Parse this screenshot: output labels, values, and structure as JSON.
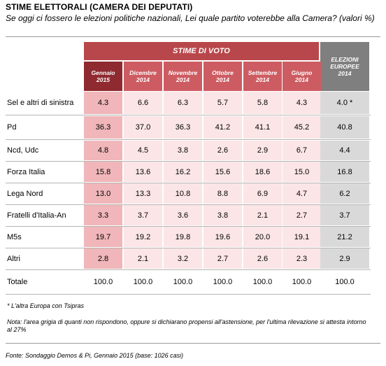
{
  "title": "STIME ELETTORALI (CAMERA DEI DEPUTATI)",
  "subtitle": "Se oggi ci fossero le elezioni politiche nazionali, Lei quale partito voterebbe alla Camera? (valori %)",
  "table": {
    "group_header": "STIME DI VOTO",
    "euro_header": [
      "ELEZIONI",
      "EUROPEE",
      "2014"
    ],
    "months": [
      {
        "line1": "Gennaio",
        "line2": "2015"
      },
      {
        "line1": "Dicembre",
        "line2": "2014"
      },
      {
        "line1": "Novembre",
        "line2": "2014"
      },
      {
        "line1": "Ottobre",
        "line2": "2014"
      },
      {
        "line1": "Settembre",
        "line2": "2014"
      },
      {
        "line1": "Giugno",
        "line2": "2014"
      }
    ],
    "rows": [
      {
        "label": "Sel e altri di sinistra",
        "values": [
          "4.3",
          "6.6",
          "6.3",
          "5.7",
          "5.8",
          "4.3"
        ],
        "euro": "4.0 *"
      },
      {
        "label": "Pd",
        "values": [
          "36.3",
          "37.0",
          "36.3",
          "41.2",
          "41.1",
          "45.2"
        ],
        "euro": "40.8"
      },
      {
        "label": "Ncd, Udc",
        "values": [
          "4.8",
          "4.5",
          "3.8",
          "2.6",
          "2.9",
          "6.7"
        ],
        "euro": "4.4"
      },
      {
        "label": "Forza Italia",
        "values": [
          "15.8",
          "13.6",
          "16.2",
          "15.6",
          "18.6",
          "15.0"
        ],
        "euro": "16.8"
      },
      {
        "label": "Lega Nord",
        "values": [
          "13.0",
          "13.3",
          "10.8",
          "8.8",
          "6.9",
          "4.7"
        ],
        "euro": "6.2"
      },
      {
        "label": "Fratelli d'Italia-An",
        "values": [
          "3.3",
          "3.7",
          "3.6",
          "3.8",
          "2.1",
          "2.7"
        ],
        "euro": "3.7"
      },
      {
        "label": "M5s",
        "values": [
          "19.7",
          "19.2",
          "19.8",
          "19.6",
          "20.0",
          "19.1"
        ],
        "euro": "21.2"
      },
      {
        "label": "Altri",
        "values": [
          "2.8",
          "2.1",
          "3.2",
          "2.7",
          "2.6",
          "2.3"
        ],
        "euro": "2.9"
      }
    ],
    "total": {
      "label": "Totale",
      "values": [
        "100.0",
        "100.0",
        "100.0",
        "100.0",
        "100.0",
        "100.0"
      ],
      "euro": "100.0"
    }
  },
  "footnote": "* L'altra Europa con Tsipras",
  "note": "Nota: l'area grigia di quanti non rispondono, oppure si dichiarano propensi all'astensione, per l'ultima rilevazione si attesta intorno al 27%",
  "source": "Fonte: Sondaggio Demos & Pi, Gennaio 2015 (base: 1026 casi)",
  "colors": {
    "header_red": "#b8474c",
    "first_month_dark": "#8e2a30",
    "month_header": "#cd5c62",
    "first_col_bg": "#f0b6b9",
    "other_col_bg": "#fbe5e6",
    "euro_header_gray": "#7f7f7f",
    "euro_col_bg": "#d9d9d9"
  }
}
